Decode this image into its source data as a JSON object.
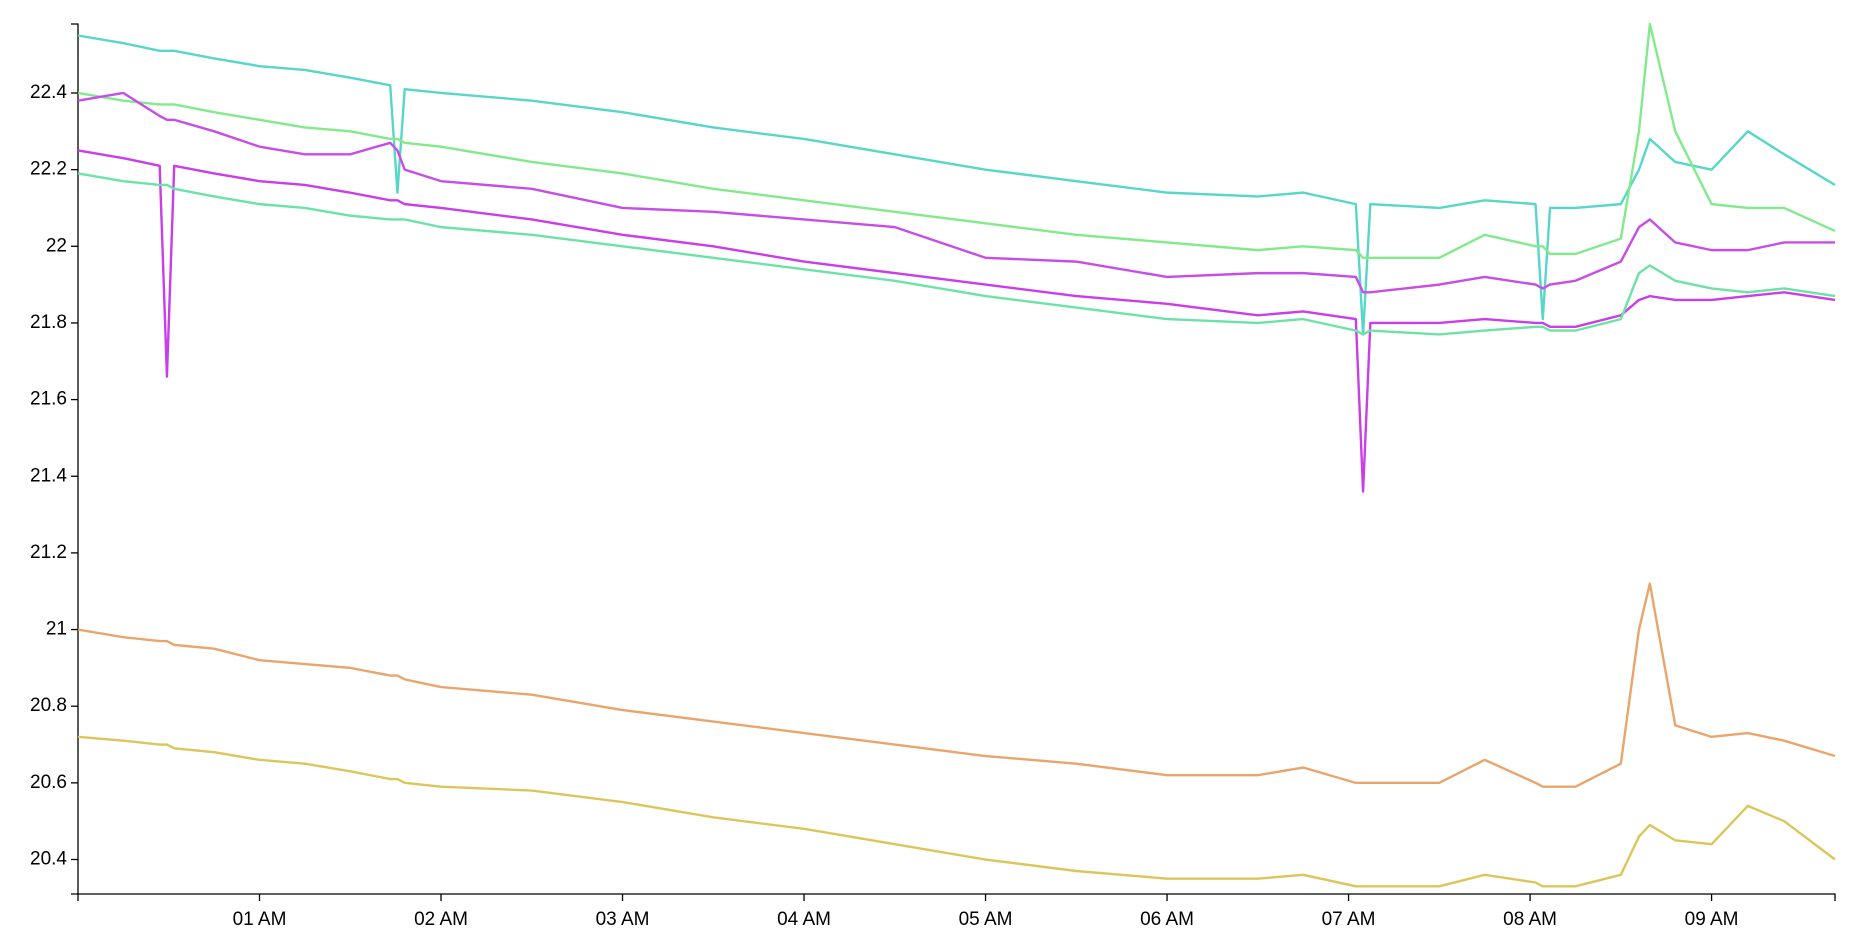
{
  "chart_data": {
    "type": "line",
    "x": [
      0,
      0.25,
      0.45,
      0.49,
      0.53,
      0.75,
      1,
      1.25,
      1.5,
      1.72,
      1.76,
      1.8,
      2,
      2.5,
      3,
      3.5,
      4,
      4.5,
      5,
      5.5,
      6,
      6.5,
      6.75,
      7.04,
      7.08,
      7.12,
      7.5,
      7.75,
      8.03,
      8.07,
      8.11,
      8.25,
      8.5,
      8.6,
      8.66,
      8.8,
      9,
      9.2,
      9.4,
      9.68
    ],
    "series": [
      {
        "color": "#58d6c9",
        "values": [
          22.55,
          22.53,
          22.51,
          22.51,
          22.51,
          22.49,
          22.47,
          22.46,
          22.44,
          22.42,
          22.14,
          22.41,
          22.4,
          22.38,
          22.35,
          22.31,
          22.28,
          22.24,
          22.2,
          22.17,
          22.14,
          22.13,
          22.14,
          22.11,
          21.77,
          22.11,
          22.1,
          22.12,
          22.11,
          21.81,
          22.1,
          22.1,
          22.11,
          22.2,
          22.28,
          22.22,
          22.2,
          22.3,
          22.24,
          22.16
        ]
      },
      {
        "color": "#82ea8c",
        "values": [
          22.4,
          22.38,
          22.37,
          22.37,
          22.37,
          22.35,
          22.33,
          22.31,
          22.3,
          22.28,
          22.28,
          22.27,
          22.26,
          22.22,
          22.19,
          22.15,
          22.12,
          22.09,
          22.06,
          22.03,
          22.01,
          21.99,
          22.0,
          21.99,
          21.97,
          21.97,
          21.97,
          22.03,
          22.0,
          22.0,
          21.98,
          21.98,
          22.02,
          22.3,
          22.58,
          22.3,
          22.11,
          22.1,
          22.1,
          22.04
        ]
      },
      {
        "color": "#c64ee6",
        "values": [
          22.38,
          22.4,
          22.34,
          22.33,
          22.33,
          22.3,
          22.26,
          22.24,
          22.24,
          22.27,
          22.25,
          22.2,
          22.17,
          22.15,
          22.1,
          22.09,
          22.07,
          22.05,
          21.97,
          21.96,
          21.92,
          21.93,
          21.93,
          21.92,
          21.88,
          21.88,
          21.9,
          21.92,
          21.9,
          21.89,
          21.9,
          21.91,
          21.96,
          22.05,
          22.07,
          22.01,
          21.99,
          21.99,
          22.01,
          22.01
        ]
      },
      {
        "color": "#c93ee8",
        "values": [
          22.25,
          22.23,
          22.21,
          21.66,
          22.21,
          22.19,
          22.17,
          22.16,
          22.14,
          22.12,
          22.12,
          22.11,
          22.1,
          22.07,
          22.03,
          22.0,
          21.96,
          21.93,
          21.9,
          21.87,
          21.85,
          21.82,
          21.83,
          21.81,
          21.36,
          21.8,
          21.8,
          21.81,
          21.8,
          21.8,
          21.79,
          21.79,
          21.82,
          21.86,
          21.87,
          21.86,
          21.86,
          21.87,
          21.88,
          21.86
        ]
      },
      {
        "color": "#6de2a6",
        "values": [
          22.19,
          22.17,
          22.16,
          22.16,
          22.15,
          22.13,
          22.11,
          22.1,
          22.08,
          22.07,
          22.07,
          22.07,
          22.05,
          22.03,
          22.0,
          21.97,
          21.94,
          21.91,
          21.87,
          21.84,
          21.81,
          21.8,
          21.81,
          21.78,
          21.77,
          21.78,
          21.77,
          21.78,
          21.79,
          21.79,
          21.78,
          21.78,
          21.81,
          21.93,
          21.95,
          21.91,
          21.89,
          21.88,
          21.89,
          21.87
        ]
      },
      {
        "color": "#e8a66c",
        "values": [
          21.0,
          20.98,
          20.97,
          20.97,
          20.96,
          20.95,
          20.92,
          20.91,
          20.9,
          20.88,
          20.88,
          20.87,
          20.85,
          20.83,
          20.79,
          20.76,
          20.73,
          20.7,
          20.67,
          20.65,
          20.62,
          20.62,
          20.64,
          20.6,
          20.6,
          20.6,
          20.6,
          20.66,
          20.6,
          20.59,
          20.59,
          20.59,
          20.65,
          21.0,
          21.12,
          20.75,
          20.72,
          20.73,
          20.71,
          20.67
        ]
      },
      {
        "color": "#dcc65c",
        "values": [
          20.72,
          20.71,
          20.7,
          20.7,
          20.69,
          20.68,
          20.66,
          20.65,
          20.63,
          20.61,
          20.61,
          20.6,
          20.59,
          20.58,
          20.55,
          20.51,
          20.48,
          20.44,
          20.4,
          20.37,
          20.35,
          20.35,
          20.36,
          20.33,
          20.33,
          20.33,
          20.33,
          20.36,
          20.34,
          20.33,
          20.33,
          20.33,
          20.36,
          20.46,
          20.49,
          20.45,
          20.44,
          20.54,
          20.5,
          20.4
        ]
      }
    ],
    "xlim": [
      0,
      9.68
    ],
    "xticks": [
      {
        "value": 1,
        "label": "01 AM"
      },
      {
        "value": 2,
        "label": "02 AM"
      },
      {
        "value": 3,
        "label": "03 AM"
      },
      {
        "value": 4,
        "label": "04 AM"
      },
      {
        "value": 5,
        "label": "05 AM"
      },
      {
        "value": 6,
        "label": "06 AM"
      },
      {
        "value": 7,
        "label": "07 AM"
      },
      {
        "value": 8,
        "label": "08 AM"
      },
      {
        "value": 9,
        "label": "09 AM"
      }
    ],
    "ylim": [
      20.31,
      22.58
    ],
    "yticks": [
      20.4,
      20.6,
      20.8,
      21.0,
      21.2,
      21.4,
      21.6,
      21.8,
      22.0,
      22.2,
      22.4
    ],
    "grid": false
  }
}
